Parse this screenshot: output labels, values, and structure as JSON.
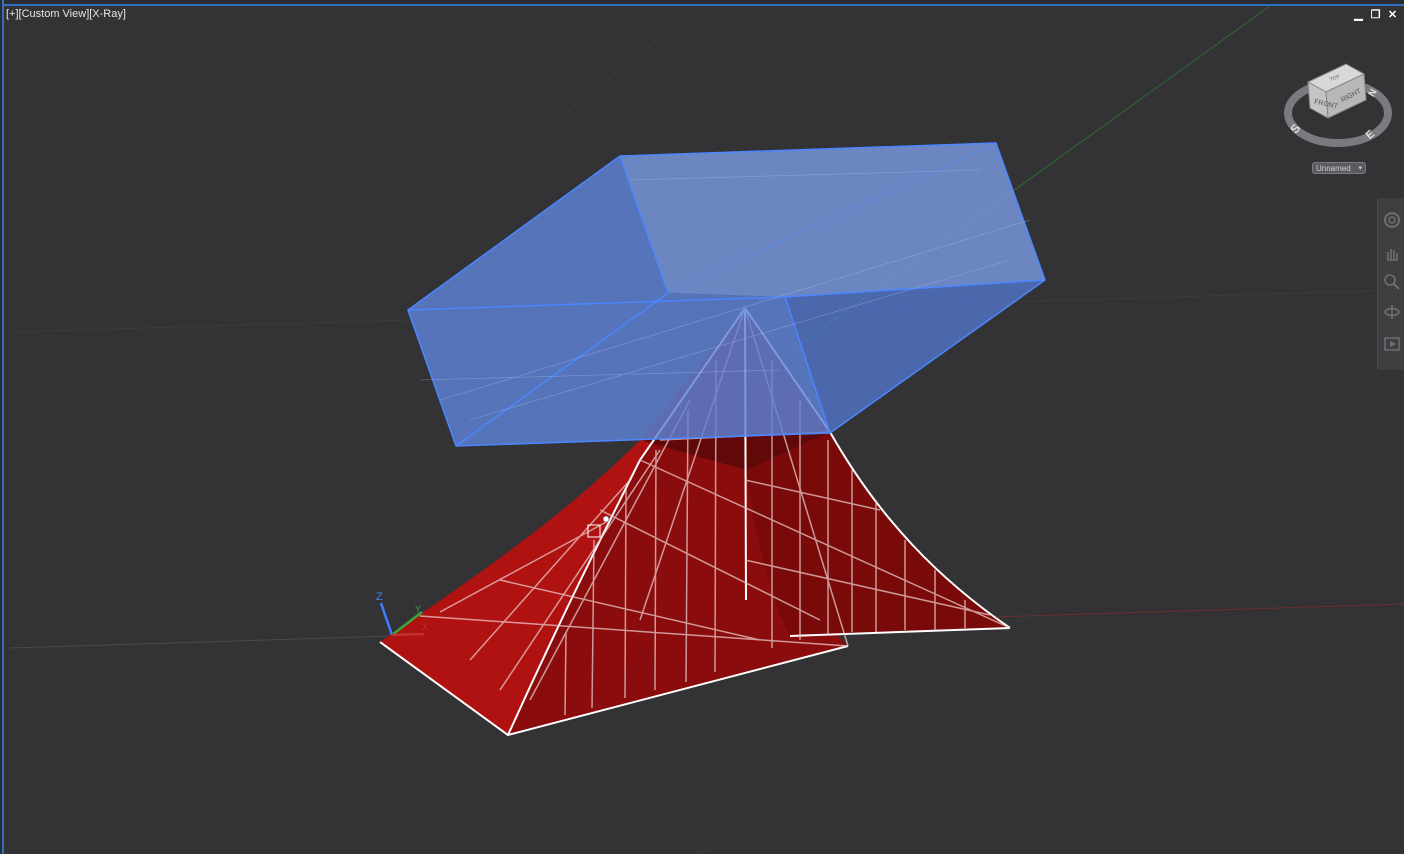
{
  "viewport": {
    "label": "[+][Custom View][X-Ray]",
    "background": "#333335"
  },
  "window_controls": {
    "minimize_glyph": "▁",
    "restore_glyph": "❐",
    "close_glyph": "✕"
  },
  "viewcube": {
    "faces": {
      "front": "FRONT",
      "right": "RIGHT",
      "top": "TOP"
    },
    "compass": {
      "s": "S",
      "e": "E",
      "n": "N"
    },
    "menu_label": "Unnamed",
    "menu_arrow": "▾"
  },
  "ucs_icon": {
    "z": "Z",
    "y": "Y",
    "x": "X"
  },
  "navigation_bar": {
    "tools": [
      "steering-wheel-icon",
      "pan-icon",
      "zoom-icon",
      "orbit-icon",
      "showmotion-icon"
    ]
  },
  "colors": {
    "box_fill": "#6a8fe0",
    "box_edge": "#3f7cff",
    "solid_fill": "#a01010",
    "solid_edge": "#ffffff",
    "grid_green": "#2e7a2e",
    "grid_red": "#7a2e2e",
    "frame_blue": "#2f6fc0"
  }
}
